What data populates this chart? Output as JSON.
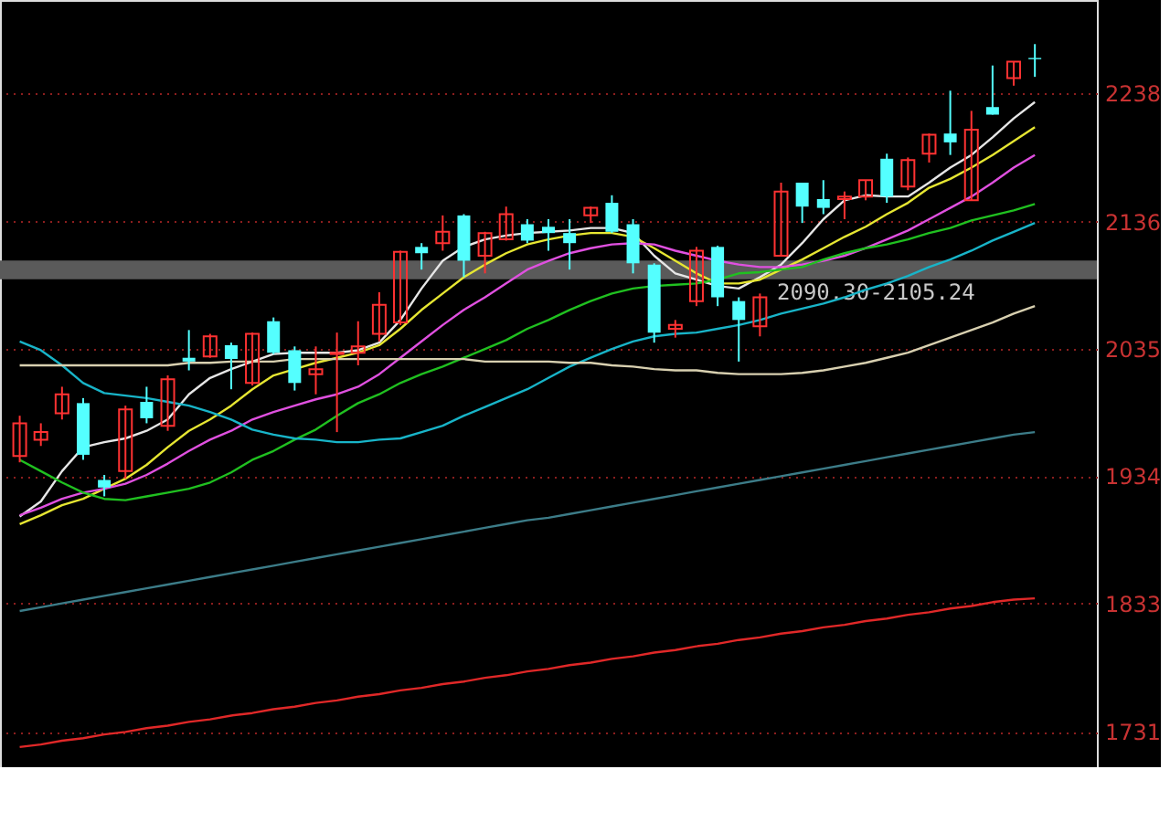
{
  "chart_data": {
    "type": "candlestick",
    "categories": [
      null,
      null,
      null,
      null,
      null,
      null,
      null,
      null,
      null,
      null,
      null,
      null,
      null,
      null,
      null,
      null,
      null,
      null,
      null,
      null,
      null,
      null,
      null,
      null,
      null,
      null,
      null,
      null,
      null,
      null,
      null,
      null,
      null,
      null,
      null,
      null,
      null,
      null,
      null,
      null,
      null,
      null,
      null,
      null,
      null,
      null,
      null,
      null,
      null
    ],
    "ohlc": [
      [
        1950,
        1982,
        1945,
        1976
      ],
      [
        1963,
        1976,
        1958,
        1969
      ],
      [
        1984,
        2005,
        1979,
        1999
      ],
      [
        1992,
        1996,
        1947,
        1951
      ],
      [
        1931,
        1935,
        1918,
        1925
      ],
      [
        1938,
        1990,
        1932,
        1987
      ],
      [
        1993,
        2005,
        1976,
        1980
      ],
      [
        1974,
        2014,
        1970,
        2011
      ],
      [
        2028,
        2050,
        2018,
        2025
      ],
      [
        2029,
        2047,
        2028,
        2045
      ],
      [
        2038,
        2040,
        2003,
        2027
      ],
      [
        2008,
        2048,
        2006,
        2047
      ],
      [
        2057,
        2060,
        2031,
        2032
      ],
      [
        2034,
        2037,
        2002,
        2008
      ],
      [
        2015,
        2037,
        1999,
        2019
      ],
      [
        2031,
        2048,
        1969,
        2032
      ],
      [
        2032,
        2057,
        2022,
        2037
      ],
      [
        2047,
        2080,
        2041,
        2070
      ],
      [
        2056,
        2113,
        2054,
        2112
      ],
      [
        2116,
        2119,
        2098,
        2111
      ],
      [
        2119,
        2141,
        2113,
        2128
      ],
      [
        2141,
        2142,
        2092,
        2105
      ],
      [
        2109,
        2128,
        2095,
        2127
      ],
      [
        2122,
        2148,
        2121,
        2142
      ],
      [
        2134,
        2138,
        2119,
        2121
      ],
      [
        2132,
        2138,
        2113,
        2127
      ],
      [
        2127,
        2138,
        2098,
        2119
      ],
      [
        2141,
        2148,
        2135,
        2147
      ],
      [
        2151,
        2157,
        2127,
        2128
      ],
      [
        2134,
        2138,
        2095,
        2103
      ],
      [
        2102,
        2103,
        2040,
        2048
      ],
      [
        2051,
        2058,
        2044,
        2054
      ],
      [
        2073,
        2116,
        2069,
        2113
      ],
      [
        2116,
        2117,
        2069,
        2076
      ],
      [
        2073,
        2076,
        2025,
        2058
      ],
      [
        2053,
        2079,
        2045,
        2076
      ],
      [
        2109,
        2167,
        2109,
        2160
      ],
      [
        2167,
        2167,
        2135,
        2148
      ],
      [
        2154,
        2169,
        2142,
        2147
      ],
      [
        2154,
        2160,
        2138,
        2156
      ],
      [
        2156,
        2169,
        2153,
        2169
      ],
      [
        2186,
        2190,
        2151,
        2156
      ],
      [
        2164,
        2187,
        2161,
        2185
      ],
      [
        2190,
        2206,
        2183,
        2205
      ],
      [
        2206,
        2240,
        2189,
        2199
      ],
      [
        2153,
        2224,
        2153,
        2209
      ],
      [
        2227,
        2260,
        2221,
        2221
      ],
      [
        2250,
        2263,
        2244,
        2263
      ],
      [
        2266,
        2277,
        2251,
        2265
      ]
    ],
    "colors": [
      "#ff3232",
      "#ff3232",
      "#ff3232",
      "#54ffff",
      "#54ffff",
      "#ff3232",
      "#54ffff",
      "#ff3232",
      "#54ffff",
      "#ff3232",
      "#54ffff",
      "#ff3232",
      "#54ffff",
      "#54ffff",
      "#ff3232",
      "#ff3232",
      "#ff3232",
      "#ff3232",
      "#ff3232",
      "#54ffff",
      "#ff3232",
      "#54ffff",
      "#ff3232",
      "#ff3232",
      "#54ffff",
      "#54ffff",
      "#54ffff",
      "#ff3232",
      "#54ffff",
      "#54ffff",
      "#54ffff",
      "#ff3232",
      "#ff3232",
      "#54ffff",
      "#54ffff",
      "#ff3232",
      "#ff3232",
      "#54ffff",
      "#54ffff",
      "#ff3232",
      "#ff3232",
      "#54ffff",
      "#ff3232",
      "#ff3232",
      "#54ffff",
      "#ff3232",
      "#54ffff",
      "#ff3232",
      "#54ffff"
    ],
    "series": [
      {
        "type": "line",
        "color": "#e6e6e6",
        "values": [
          1902,
          1914,
          1938,
          1957,
          1961,
          1964,
          1970,
          1979,
          1999,
          2012,
          2019,
          2025,
          2031,
          2032,
          2032,
          2032,
          2034,
          2040,
          2058,
          2083,
          2105,
          2116,
          2122,
          2125,
          2127,
          2128,
          2129,
          2131,
          2131,
          2127,
          2109,
          2095,
          2090,
          2085,
          2083,
          2092,
          2102,
          2119,
          2138,
          2153,
          2157,
          2156,
          2156,
          2167,
          2179,
          2189,
          2203,
          2218,
          2231
        ]
      },
      {
        "type": "line",
        "color": "#e6e632",
        "values": [
          1896,
          1903,
          1911,
          1916,
          1924,
          1932,
          1943,
          1957,
          1970,
          1979,
          1990,
          2003,
          2014,
          2019,
          2024,
          2028,
          2032,
          2038,
          2051,
          2066,
          2079,
          2092,
          2102,
          2111,
          2118,
          2122,
          2125,
          2127,
          2127,
          2124,
          2115,
          2105,
          2095,
          2087,
          2087,
          2090,
          2098,
          2106,
          2115,
          2124,
          2132,
          2142,
          2151,
          2163,
          2170,
          2179,
          2189,
          2200,
          2211
        ]
      },
      {
        "type": "line",
        "color": "#e050e0",
        "values": [
          1903,
          1909,
          1916,
          1921,
          1924,
          1928,
          1935,
          1944,
          1954,
          1963,
          1970,
          1979,
          1985,
          1990,
          1995,
          1999,
          2005,
          2015,
          2028,
          2041,
          2054,
          2066,
          2076,
          2087,
          2098,
          2105,
          2111,
          2115,
          2118,
          2119,
          2118,
          2113,
          2109,
          2105,
          2102,
          2100,
          2100,
          2102,
          2105,
          2109,
          2115,
          2122,
          2129,
          2138,
          2147,
          2156,
          2167,
          2179,
          2189
        ]
      },
      {
        "type": "line",
        "color": "#20c020",
        "values": [
          1947,
          1938,
          1929,
          1921,
          1916,
          1915,
          1918,
          1921,
          1924,
          1929,
          1937,
          1947,
          1954,
          1963,
          1971,
          1982,
          1992,
          1999,
          2008,
          2015,
          2021,
          2028,
          2035,
          2042,
          2051,
          2058,
          2066,
          2073,
          2079,
          2083,
          2085,
          2086,
          2087,
          2090,
          2095,
          2096,
          2098,
          2100,
          2106,
          2111,
          2115,
          2118,
          2122,
          2127,
          2131,
          2137,
          2141,
          2145,
          2150
        ]
      },
      {
        "type": "line",
        "color": "#18b4c8",
        "values": [
          2041,
          2034,
          2022,
          2008,
          2000,
          1998,
          1996,
          1993,
          1990,
          1985,
          1979,
          1971,
          1967,
          1964,
          1963,
          1961,
          1961,
          1963,
          1964,
          1969,
          1974,
          1982,
          1989,
          1996,
          2003,
          2012,
          2021,
          2028,
          2035,
          2041,
          2045,
          2047,
          2048,
          2051,
          2054,
          2058,
          2063,
          2067,
          2071,
          2076,
          2082,
          2087,
          2093,
          2100,
          2106,
          2113,
          2121,
          2128,
          2135
        ]
      },
      {
        "type": "line",
        "color": "#d8d0b0",
        "values": [
          2022,
          2022,
          2022,
          2022,
          2022,
          2022,
          2022,
          2022,
          2024,
          2024,
          2025,
          2025,
          2025,
          2027,
          2027,
          2027,
          2027,
          2027,
          2027,
          2027,
          2027,
          2027,
          2025,
          2025,
          2025,
          2025,
          2024,
          2024,
          2022,
          2021,
          2019,
          2018,
          2018,
          2016,
          2015,
          2015,
          2015,
          2016,
          2018,
          2021,
          2024,
          2028,
          2032,
          2038,
          2044,
          2050,
          2056,
          2063,
          2069
        ]
      },
      {
        "type": "line",
        "color": "#3c7c88",
        "values": [
          1827,
          1830,
          1833,
          1836,
          1839,
          1842,
          1845,
          1848,
          1851,
          1854,
          1857,
          1860,
          1863,
          1866,
          1869,
          1872,
          1875,
          1878,
          1881,
          1884,
          1887,
          1890,
          1893,
          1896,
          1899,
          1901,
          1904,
          1907,
          1910,
          1913,
          1916,
          1919,
          1922,
          1925,
          1928,
          1931,
          1934,
          1937,
          1940,
          1943,
          1946,
          1949,
          1952,
          1955,
          1958,
          1961,
          1964,
          1967,
          1969
        ]
      },
      {
        "type": "line",
        "color": "#e02828",
        "values": [
          1719,
          1721,
          1724,
          1726,
          1729,
          1731,
          1734,
          1736,
          1739,
          1741,
          1744,
          1746,
          1749,
          1751,
          1754,
          1756,
          1759,
          1761,
          1764,
          1766,
          1769,
          1771,
          1774,
          1776,
          1779,
          1781,
          1784,
          1786,
          1789,
          1791,
          1794,
          1796,
          1799,
          1801,
          1804,
          1806,
          1809,
          1811,
          1814,
          1816,
          1819,
          1821,
          1824,
          1826,
          1829,
          1831,
          1834,
          1836,
          1837
        ]
      }
    ],
    "ylim": [
      1703,
      2312
    ],
    "yticks": [
      1731,
      1833,
      1934,
      2035,
      2136,
      2238
    ],
    "grid": "y",
    "tick_labels": "y",
    "bands": [
      {
        "axis": "y",
        "from": 2090.3,
        "to": 2105.24,
        "label": "2090.30-2105.24",
        "color": "#5a5a5a"
      }
    ]
  }
}
